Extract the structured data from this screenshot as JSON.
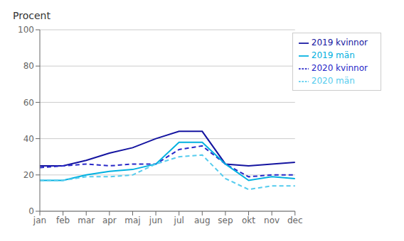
{
  "chart_data": {
    "type": "line",
    "ylabel": "Procent",
    "categories": [
      "jan",
      "feb",
      "mar",
      "apr",
      "maj",
      "jun",
      "jul",
      "aug",
      "sep",
      "okt",
      "nov",
      "dec"
    ],
    "series": [
      {
        "name": "2019 kvinnor",
        "color": "#1414a0",
        "line_style": "solid",
        "values": [
          25,
          25,
          28,
          32,
          35,
          40,
          44,
          44,
          26,
          25,
          26,
          27
        ]
      },
      {
        "name": "2020 kvinnor",
        "color": "#2828c8",
        "line_style": "dashed",
        "values": [
          24,
          25,
          26,
          25,
          26,
          26,
          34,
          36,
          26,
          19,
          20,
          20
        ]
      },
      {
        "name": "2019 män",
        "color": "#00b0e0",
        "line_style": "solid",
        "values": [
          17,
          17,
          20,
          22,
          23,
          26,
          38,
          38,
          26,
          17,
          19,
          18
        ]
      },
      {
        "name": "2020 män",
        "color": "#55ccee",
        "line_style": "dashed",
        "values": [
          17,
          17,
          19,
          19,
          20,
          26,
          30,
          31,
          18,
          12,
          14,
          14
        ]
      }
    ],
    "ylim": [
      0,
      100
    ],
    "yticks": [
      0,
      20,
      40,
      60,
      80,
      100
    ],
    "grid": true,
    "legend": "upper right"
  }
}
